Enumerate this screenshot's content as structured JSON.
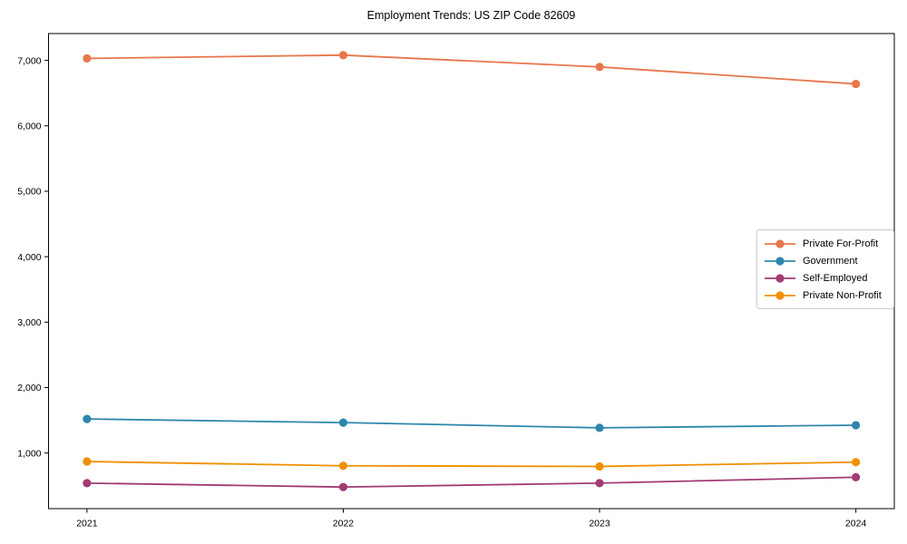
{
  "page": {
    "title": "Employment Trends: US ZIP Code 82609"
  },
  "chart_data": {
    "type": "line",
    "title": "Employment Trends: US ZIP Code 82609",
    "xlabel": "",
    "ylabel": "",
    "x": [
      2021,
      2022,
      2023,
      2024
    ],
    "x_tick_labels": [
      "2021",
      "2022",
      "2023",
      "2024"
    ],
    "series": [
      {
        "name": "Private For-Profit",
        "color": "#e8764b",
        "values": [
          7030,
          7080,
          6900,
          6640
        ]
      },
      {
        "name": "Government",
        "color": "#2e86ab",
        "values": [
          1520,
          1465,
          1385,
          1425
        ]
      },
      {
        "name": "Self-Employed",
        "color": "#a23b72",
        "values": [
          540,
          480,
          540,
          630
        ]
      },
      {
        "name": "Private Non-Profit",
        "color": "#f18f01",
        "values": [
          870,
          805,
          795,
          860
        ]
      }
    ],
    "yticks": [
      1000,
      2000,
      3000,
      4000,
      5000,
      6000,
      7000
    ],
    "ytick_labels": [
      "1,000",
      "2,000",
      "3,000",
      "4,000",
      "5,000",
      "6,000",
      "7,000"
    ],
    "ylim": [
      150,
      7410
    ],
    "xlim": [
      2020.85,
      2024.15
    ],
    "grid": false,
    "legend_position": "center-right",
    "marker": "circle",
    "frame_color": "#000000"
  }
}
